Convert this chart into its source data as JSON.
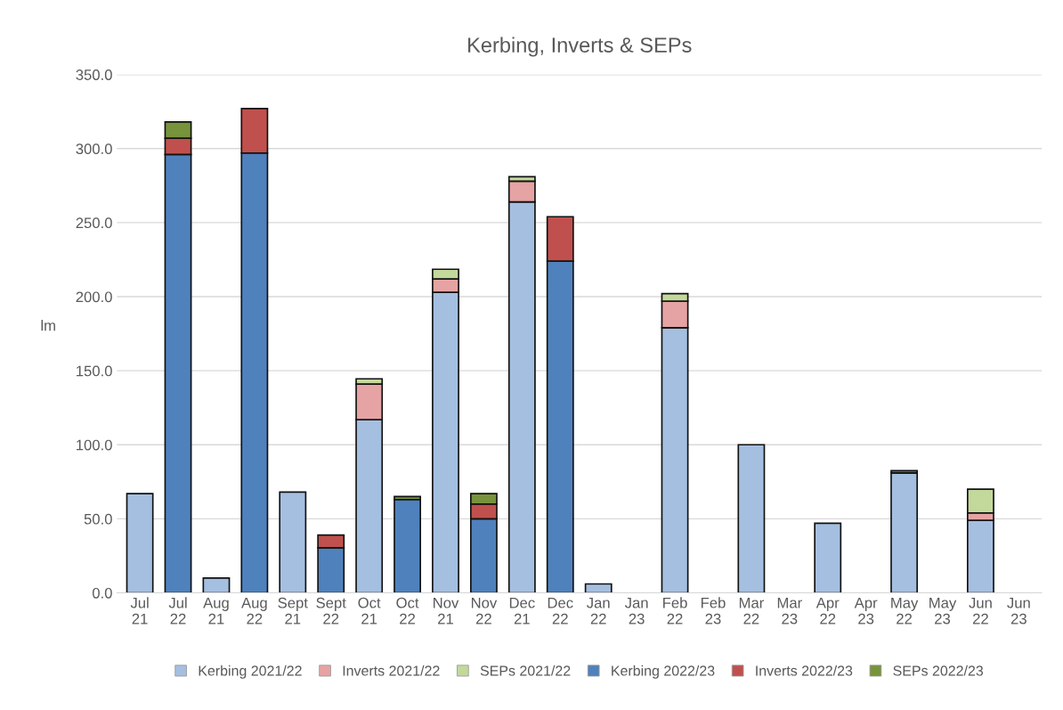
{
  "chart_data": {
    "type": "bar",
    "title": "Kerbing, Inverts & SEPs",
    "ylabel": "lm",
    "stacked": true,
    "categories": [
      "Jul\n21",
      "Jul\n22",
      "Aug\n21",
      "Aug\n22",
      "Sept\n21",
      "Sept\n22",
      "Oct\n21",
      "Oct\n22",
      "Nov\n21",
      "Nov\n22",
      "Dec\n21",
      "Dec\n22",
      "Jan\n22",
      "Jan\n23",
      "Feb\n22",
      "Feb\n23",
      "Mar\n22",
      "Mar\n23",
      "Apr\n22",
      "Apr\n23",
      "May\n22",
      "May\n23",
      "Jun\n22",
      "Jun\n23"
    ],
    "series": [
      {
        "name": "Kerbing 2021/22",
        "color": "#a5bfe0",
        "values": [
          67,
          0,
          10,
          0,
          68,
          0,
          117,
          0,
          203,
          0,
          264,
          0,
          6,
          0,
          179,
          0,
          100,
          0,
          47,
          0,
          81,
          0,
          49,
          0
        ]
      },
      {
        "name": "Inverts 2021/22",
        "color": "#e6a3a3",
        "values": [
          0,
          0,
          0,
          0,
          0,
          0,
          24,
          0,
          9,
          0,
          14,
          0,
          0,
          0,
          18,
          0,
          0,
          0,
          0,
          0,
          0,
          0,
          5,
          0
        ]
      },
      {
        "name": "SEPs 2021/22",
        "color": "#c3d89b",
        "values": [
          0,
          0,
          0,
          0,
          0,
          0,
          3.5,
          0,
          6.5,
          0,
          3,
          0,
          0,
          0,
          5,
          0,
          0,
          0,
          0,
          0,
          0,
          0,
          16,
          0
        ]
      },
      {
        "name": "Kerbing 2022/23",
        "color": "#4f81bd",
        "values": [
          0,
          296,
          0,
          297,
          0,
          30.5,
          0,
          63,
          0,
          50,
          0,
          224,
          0,
          0,
          0,
          0,
          0,
          0,
          0,
          0,
          0,
          0,
          0,
          0
        ]
      },
      {
        "name": "Inverts 2022/23",
        "color": "#c0504d",
        "values": [
          0,
          11,
          0,
          30,
          0,
          8.5,
          0,
          0,
          0,
          10,
          0,
          30,
          0,
          0,
          0,
          0,
          0,
          0,
          0,
          0,
          0,
          0,
          0,
          0
        ]
      },
      {
        "name": "SEPs 2022/23",
        "color": "#77933c",
        "values": [
          0,
          11,
          0,
          0,
          0,
          0,
          0,
          2,
          0,
          7,
          0,
          0,
          0,
          0,
          0,
          0,
          0,
          0,
          0,
          0,
          1.5,
          0,
          0,
          0
        ]
      }
    ],
    "ylim": [
      0,
      350
    ],
    "yticks": [
      {
        "value": 0,
        "label": "0.0"
      },
      {
        "value": 50,
        "label": "50.0"
      },
      {
        "value": 100,
        "label": "100.0"
      },
      {
        "value": 150,
        "label": "150.0"
      },
      {
        "value": 200,
        "label": "200.0"
      },
      {
        "value": 250,
        "label": "250.0"
      },
      {
        "value": 300,
        "label": "300.0"
      },
      {
        "value": 350,
        "label": "350.0"
      }
    ],
    "grid": "y",
    "legend": "bottom"
  }
}
